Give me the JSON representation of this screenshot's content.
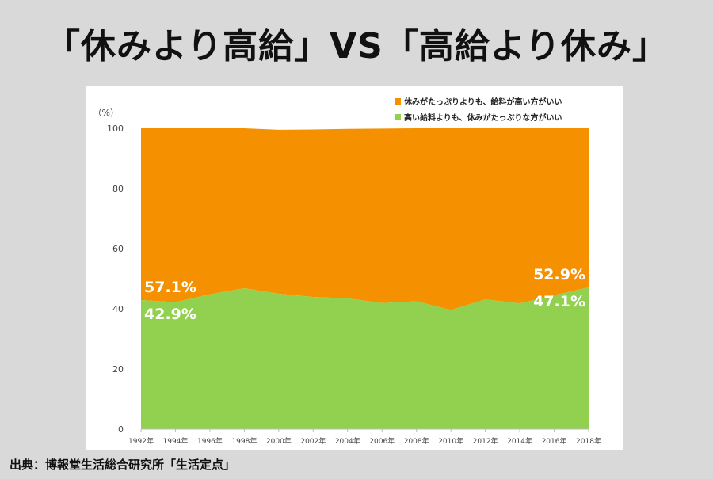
{
  "title": "「休みより高給」VS「高給より休み」",
  "source": "出典：博報堂生活総合研究所「生活定点」",
  "chart_data": {
    "type": "area",
    "stacked": true,
    "title": "「休みより高給」VS「高給より休み」",
    "ylabel": "（%）",
    "ylim": [
      0,
      100
    ],
    "yticks": [
      0,
      20,
      40,
      60,
      80,
      100
    ],
    "grid": false,
    "legend_placement": "top-right",
    "x": [
      "1992年",
      "1994年",
      "1996年",
      "1998年",
      "2000年",
      "2002年",
      "2004年",
      "2006年",
      "2008年",
      "2010年",
      "2012年",
      "2014年",
      "2016年",
      "2018年"
    ],
    "series": [
      {
        "name": "高い給料よりも、休みがたっぷりな方がいい",
        "color": "#92d050",
        "values": [
          42.9,
          42.2,
          44.8,
          46.8,
          45.0,
          43.9,
          43.5,
          41.9,
          42.5,
          39.6,
          43.1,
          41.8,
          44.5,
          47.1
        ]
      },
      {
        "name": "休みがたっぷりよりも、給料が高い方がいい",
        "color": "#f59100",
        "values": [
          57.1,
          57.8,
          55.2,
          53.2,
          54.5,
          55.7,
          56.3,
          58.0,
          57.5,
          60.4,
          56.9,
          58.2,
          55.5,
          52.9
        ]
      }
    ],
    "annotations": {
      "start_top": "57.1%",
      "start_bottom": "42.9%",
      "end_top": "52.9%",
      "end_bottom": "47.1%"
    }
  }
}
